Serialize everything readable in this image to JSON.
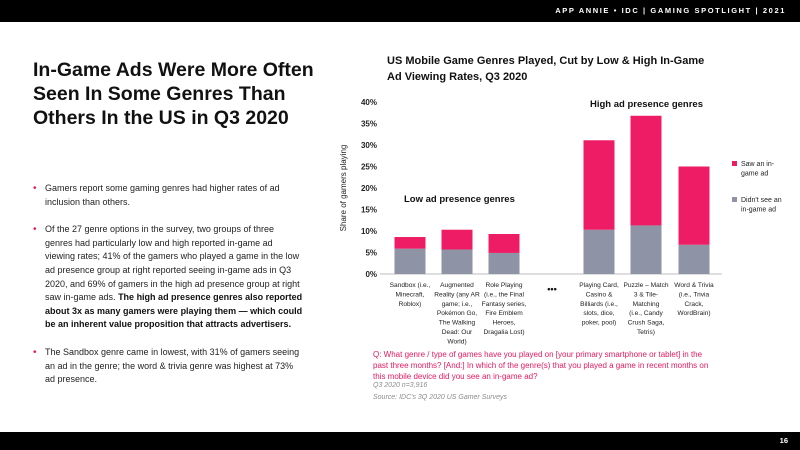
{
  "header": {
    "brand": "APP ANNIE • IDC  |  GAMING SPOTLIGHT  |  2021"
  },
  "footer": {
    "page_number": "16"
  },
  "headline": "In-Game Ads Were More Often Seen In Some Genres Than Others In the US in Q3 2020",
  "bullets": [
    {
      "text": "Gamers report some gaming genres had higher rates of ad inclusion than others."
    },
    {
      "text": "Of the 27 genre options in the survey, two groups of three genres had particularly low and high reported in-game ad viewing rates; 41% of the gamers who played a game in the low ad presence group at right reported seeing in-game ads in Q3 2020, and 69% of gamers in the high ad presence group at right saw in-game ads.",
      "bold": "The high ad presence genres also reported about 3x as many gamers were playing them — which could be an inherent value proposition that attracts advertisers."
    },
    {
      "text": "The Sandbox genre came in lowest, with 31% of gamers seeing an ad in the genre; the word & trivia genre was highest at 73% ad presence."
    }
  ],
  "question": "Q: What genre / type of games have you played on [your primary smartphone or tablet] in the past three months? [And:] In which of the genre(s) that you played a game in recent months on this mobile device did you see an in-game ad?",
  "sample": "Q3 2020 n=3,916",
  "source": "Source: IDC's 3Q 2020 US Gamer Surveys",
  "colors": {
    "saw": "#ee1c64",
    "didnt": "#8e93a5",
    "accent": "#e6195e"
  },
  "chart_data": {
    "type": "bar",
    "stacked": true,
    "title": "US Mobile Game Genres Played, Cut by Low & High In-Game Ad Viewing Rates, Q3 2020",
    "ylabel": "Share of gamers playing",
    "ylim": [
      0,
      40
    ],
    "yticks": [
      "0%",
      "5%",
      "10%",
      "15%",
      "20%",
      "25%",
      "30%",
      "35%",
      "40%"
    ],
    "categories": [
      [
        "Sandbox (i.e.,",
        "Minecraft,",
        "Roblox)"
      ],
      [
        "Augmented",
        "Reality (any AR",
        "game; i.e.,",
        "Pokémon Go,",
        "The Walking",
        "Dead: Our",
        "World)"
      ],
      [
        "Role Playing",
        "(i.e., the Final",
        "Fantasy series,",
        "Fire Emblem",
        "Heroes,",
        "Dragalia Lost)"
      ],
      [
        "Playing Card,",
        "Casino &",
        "Billiards (i.e.,",
        "slots, dice,",
        "poker, pool)"
      ],
      [
        "Puzzle – Match",
        "3 & Tile-",
        "Matching",
        "(i.e., Candy",
        "Crush Saga,",
        "Tetris)"
      ],
      [
        "Word & Trivia",
        "(i.e., Trivia",
        "Crack,",
        "WordBrain)"
      ]
    ],
    "series": [
      {
        "name": "Didn't see an in-game ad",
        "values": [
          5.9,
          5.7,
          4.9,
          10.3,
          11.3,
          6.8
        ]
      },
      {
        "name": "Saw an in-game ad",
        "values": [
          2.7,
          4.6,
          4.4,
          20.8,
          25.5,
          18.2
        ]
      }
    ],
    "group_labels": [
      "Low ad presence genres",
      "High ad presence genres"
    ],
    "break_marker": "•••",
    "legend": [
      {
        "label": [
          "Saw an in-",
          "game ad"
        ],
        "color": "#ee1c64"
      },
      {
        "label": [
          "Didn't see an",
          "in-game ad"
        ],
        "color": "#8e93a5"
      }
    ],
    "legend_position": "right"
  }
}
